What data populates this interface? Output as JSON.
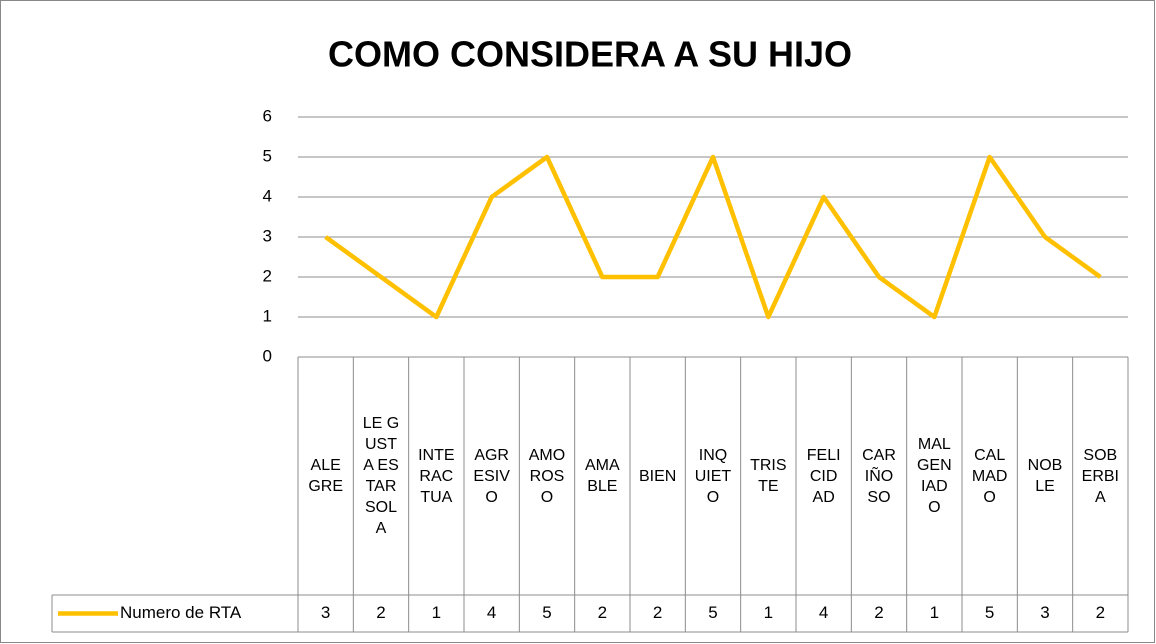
{
  "chart_data": {
    "type": "line",
    "title": "COMO CONSIDERA A SU HIJO",
    "categories": [
      "ALEGRE",
      "LE GUSTA ESTAR SOLA",
      "INTERACTUA",
      "AGRESIVO",
      "AMOROSO",
      "AMABLE",
      "BIEN",
      "INQUIETO",
      "TRISTE",
      "FELICIDAD",
      "CARIÑOSO",
      "MALGENIADO",
      "CALMADO",
      "NOBLE",
      "SOBERBIA"
    ],
    "series": [
      {
        "name": "Numero de RTA",
        "color": "#FFC000",
        "values": [
          3,
          2,
          1,
          4,
          5,
          2,
          2,
          5,
          1,
          4,
          2,
          1,
          5,
          3,
          2
        ]
      }
    ],
    "ylim": [
      0,
      6
    ],
    "yticks": [
      0,
      1,
      2,
      3,
      4,
      5,
      6
    ],
    "grid": true,
    "data_table": true
  }
}
